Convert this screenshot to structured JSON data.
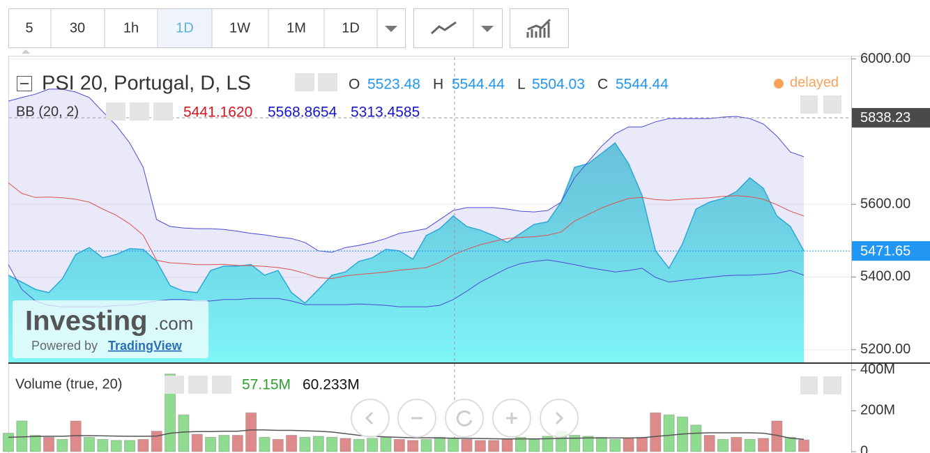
{
  "toolbar": {
    "intervals": [
      "5",
      "30",
      "1h",
      "1D",
      "1W",
      "1M",
      "1D"
    ]
  },
  "legend": {
    "symbol": "PSI 20, Portugal, D, LS",
    "ohlc": [
      {
        "label": "O",
        "value": "5523.48"
      },
      {
        "label": "H",
        "value": "5544.44"
      },
      {
        "label": "L",
        "value": "5504.03"
      },
      {
        "label": "C",
        "value": "5544.44"
      }
    ],
    "status": "delayed",
    "bb": {
      "name": "BB (20, 2)",
      "values": [
        "5441.1620",
        "5568.8654",
        "5313.4585"
      ]
    }
  },
  "watermark": {
    "brand": "Investing",
    "domain": ".com",
    "powered": "Powered by",
    "link": "TradingView"
  },
  "chart_data": [
    {
      "type": "area",
      "color": "#3fb4cf",
      "values": [
        5405,
        5386,
        5366,
        5357,
        5395,
        5462,
        5481,
        5453,
        5462,
        5478,
        5476,
        5443,
        5376,
        5361,
        5357,
        5418,
        5430,
        5430,
        5434,
        5405,
        5418,
        5357,
        5328,
        5366,
        5405,
        5414,
        5443,
        5453,
        5476,
        5472,
        5449,
        5514,
        5533,
        5568,
        5539,
        5529,
        5514,
        5495,
        5520,
        5545,
        5552,
        5606,
        5702,
        5712,
        5740,
        5769,
        5712,
        5625,
        5472,
        5424,
        5491,
        5587,
        5606,
        5616,
        5635,
        5673,
        5644,
        5568,
        5539,
        5472
      ],
      "upper": [
        5884,
        5894,
        5903,
        5917,
        5917,
        5909,
        5894,
        5855,
        5817,
        5769,
        5702,
        5558,
        5539,
        5535,
        5533,
        5533,
        5531,
        5526,
        5520,
        5516,
        5510,
        5506,
        5495,
        5472,
        5468,
        5481,
        5487,
        5495,
        5506,
        5520,
        5526,
        5533,
        5558,
        5583,
        5591,
        5591,
        5591,
        5587,
        5581,
        5579,
        5583,
        5606,
        5673,
        5717,
        5760,
        5794,
        5813,
        5813,
        5827,
        5836,
        5836,
        5836,
        5836,
        5840,
        5842,
        5836,
        5821,
        5788,
        5744,
        5731
      ],
      "middle": [
        5659,
        5630,
        5619,
        5620,
        5618,
        5614,
        5606,
        5587,
        5570,
        5546,
        5515,
        5446,
        5439,
        5437,
        5434,
        5434,
        5435,
        5432,
        5431,
        5429,
        5426,
        5420,
        5410,
        5398,
        5396,
        5403,
        5407,
        5410,
        5414,
        5419,
        5422,
        5426,
        5440,
        5461,
        5476,
        5489,
        5498,
        5506,
        5509,
        5511,
        5515,
        5524,
        5554,
        5572,
        5590,
        5604,
        5616,
        5619,
        5613,
        5611,
        5614,
        5616,
        5618,
        5622,
        5624,
        5621,
        5614,
        5599,
        5581,
        5568
      ],
      "lower": [
        5434,
        5366,
        5334,
        5322,
        5318,
        5318,
        5318,
        5318,
        5322,
        5322,
        5328,
        5334,
        5338,
        5338,
        5334,
        5334,
        5338,
        5338,
        5341,
        5341,
        5341,
        5334,
        5324,
        5324,
        5324,
        5324,
        5326,
        5324,
        5322,
        5318,
        5318,
        5318,
        5322,
        5338,
        5361,
        5386,
        5405,
        5424,
        5437,
        5443,
        5447,
        5441,
        5434,
        5426,
        5420,
        5414,
        5418,
        5424,
        5399,
        5386,
        5391,
        5395,
        5399,
        5403,
        5405,
        5405,
        5407,
        5410,
        5418,
        5405
      ],
      "band_color": "#4a4ad6",
      "middle_color": "#e05050",
      "ylim": [
        5165,
        6005
      ],
      "yticks": [
        {
          "value": 5200,
          "label": "5200.00"
        },
        {
          "value": 5400,
          "label": "5400.00"
        },
        {
          "value": 5600,
          "label": "5600.00"
        },
        {
          "value": 6000,
          "label": "6000.00"
        }
      ],
      "grid": true,
      "last_price": 5471.65,
      "crosshair_price": 5838.23
    },
    {
      "type": "bar",
      "title": "Volume (true, 20)",
      "values": [
        90000000,
        150000000,
        80000000,
        70000000,
        60000000,
        150000000,
        70000000,
        60000000,
        55000000,
        55000000,
        60000000,
        100000000,
        380000000,
        180000000,
        85000000,
        70000000,
        80000000,
        80000000,
        190000000,
        70000000,
        60000000,
        80000000,
        70000000,
        75000000,
        70000000,
        65000000,
        60000000,
        65000000,
        70000000,
        60000000,
        55000000,
        60000000,
        70000000,
        65000000,
        60000000,
        55000000,
        55000000,
        60000000,
        70000000,
        60000000,
        75000000,
        100000000,
        80000000,
        75000000,
        70000000,
        60000000,
        65000000,
        70000000,
        190000000,
        180000000,
        170000000,
        130000000,
        80000000,
        60000000,
        70000000,
        60000000,
        65000000,
        150000000,
        70000000,
        57150000
      ],
      "colors": [
        "#8fdb8f",
        "#8fdb8f",
        "#8fdb8f",
        "#de8a8a",
        "#8fdb8f",
        "#de8a8a",
        "#8fdb8f",
        "#8fdb8f",
        "#8fdb8f",
        "#8fdb8f",
        "#de8a8a",
        "#de8a8a",
        "#8fdb8f",
        "#8fdb8f",
        "#de8a8a",
        "#8fdb8f",
        "#8fdb8f",
        "#de8a8a",
        "#de8a8a",
        "#8fdb8f",
        "#de8a8a",
        "#de8a8a",
        "#8fdb8f",
        "#8fdb8f",
        "#8fdb8f",
        "#de8a8a",
        "#8fdb8f",
        "#8fdb8f",
        "#8fdb8f",
        "#de8a8a",
        "#de8a8a",
        "#8fdb8f",
        "#8fdb8f",
        "#8fdb8f",
        "#de8a8a",
        "#de8a8a",
        "#de8a8a",
        "#de8a8a",
        "#8fdb8f",
        "#8fdb8f",
        "#8fdb8f",
        "#8fdb8f",
        "#8fdb8f",
        "#8fdb8f",
        "#8fdb8f",
        "#8fdb8f",
        "#de8a8a",
        "#de8a8a",
        "#de8a8a",
        "#8fdb8f",
        "#8fdb8f",
        "#8fdb8f",
        "#de8a8a",
        "#8fdb8f",
        "#de8a8a",
        "#8fdb8f",
        "#de8a8a",
        "#de8a8a",
        "#8fdb8f",
        "#de8a8a"
      ],
      "ma": [
        70000000,
        72000000,
        74000000,
        75000000,
        75000000,
        78000000,
        78000000,
        77000000,
        76000000,
        75000000,
        75000000,
        76000000,
        90000000,
        96000000,
        98000000,
        98000000,
        100000000,
        100000000,
        106000000,
        106000000,
        104000000,
        104000000,
        102000000,
        100000000,
        96000000,
        88000000,
        80000000,
        76000000,
        72000000,
        70000000,
        68000000,
        68000000,
        67000000,
        66000000,
        65000000,
        64000000,
        63000000,
        62000000,
        62000000,
        62000000,
        63000000,
        65000000,
        66000000,
        67000000,
        67000000,
        67000000,
        67000000,
        68000000,
        74000000,
        80000000,
        86000000,
        90000000,
        92000000,
        92000000,
        92000000,
        92000000,
        90000000,
        80000000,
        66000000,
        60233000
      ],
      "ma_color": "#555555",
      "legend_values": [
        "57.15M",
        "60.233M"
      ],
      "ylim": [
        0,
        430000000
      ],
      "yticks": [
        {
          "value": 400000000,
          "label": "400M"
        },
        {
          "value": 200000000,
          "label": "200M"
        },
        0
      ]
    }
  ]
}
